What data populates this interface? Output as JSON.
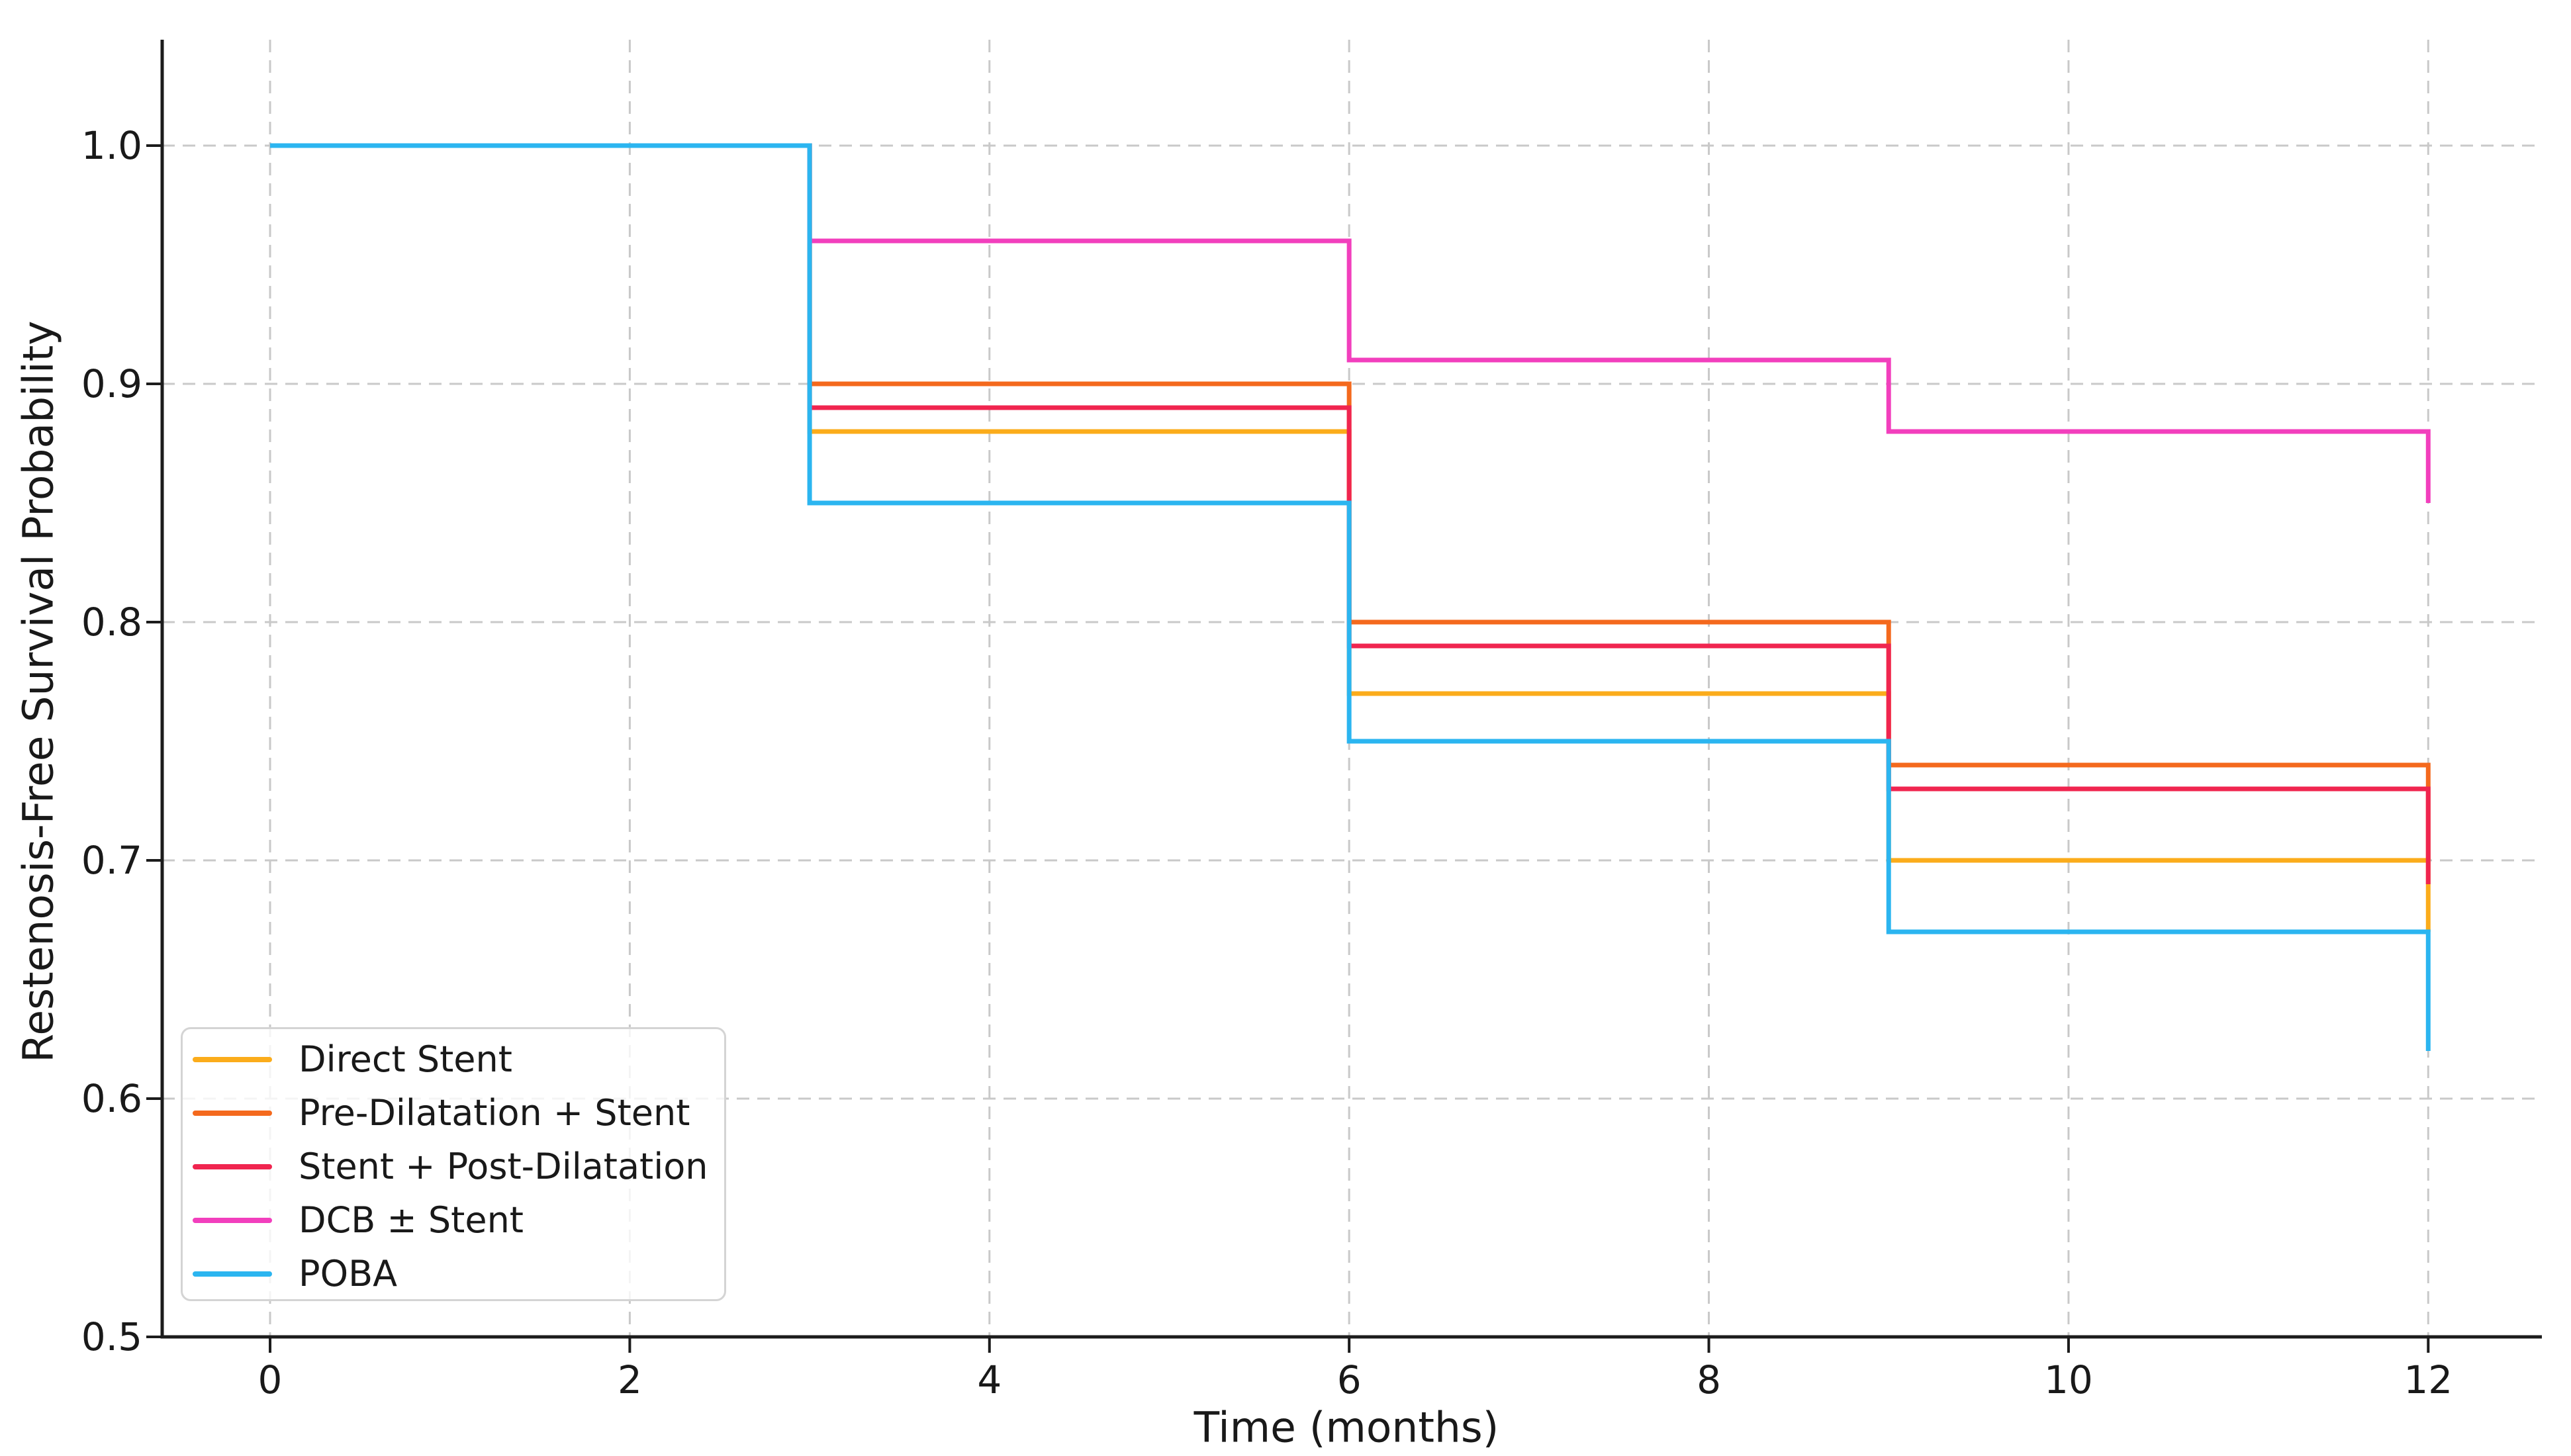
{
  "figure": {
    "background": "#ffffff"
  },
  "chart_data": {
    "type": "line",
    "subtype": "step-post-kaplan-meier",
    "title": "",
    "xlabel": "Time (months)",
    "ylabel": "Restenosis-Free Survival Probability",
    "xlim": [
      -0.6,
      12.632
    ],
    "ylim": [
      0.5,
      1.04444
    ],
    "x_ticks": [
      0,
      2,
      4,
      6,
      8,
      10,
      12
    ],
    "x_tick_labels": [
      "0",
      "2",
      "4",
      "6",
      "8",
      "10",
      "12"
    ],
    "y_ticks": [
      0.5,
      0.6,
      0.7,
      0.8,
      0.9,
      1.0
    ],
    "y_tick_labels": [
      "0.5",
      "0.6",
      "0.7",
      "0.8",
      "0.9",
      "1.0"
    ],
    "grid": true,
    "grid_style": "dashed",
    "legend_position": "lower left",
    "step_times": [
      0,
      3,
      6,
      9,
      12
    ],
    "series": [
      {
        "name": "Direct Stent",
        "color": "#FBAC1B",
        "survival": [
          1.0,
          0.88,
          0.77,
          0.7,
          0.67
        ]
      },
      {
        "name": "Pre-Dilatation + Stent",
        "color": "#F4691D",
        "survival": [
          1.0,
          0.9,
          0.8,
          0.74,
          0.7
        ]
      },
      {
        "name": "Stent + Post-Dilatation",
        "color": "#F0254F",
        "survival": [
          1.0,
          0.89,
          0.79,
          0.73,
          0.69
        ]
      },
      {
        "name": "DCB ± Stent",
        "color": "#F23FBD",
        "survival": [
          1.0,
          0.96,
          0.91,
          0.88,
          0.85
        ]
      },
      {
        "name": "POBA",
        "color": "#2BB5F0",
        "survival": [
          1.0,
          0.85,
          0.75,
          0.67,
          0.62
        ]
      }
    ],
    "styles": {
      "grid_color": "#c9c9c9",
      "spine_color": "#1c1c1c",
      "text_color": "#191919",
      "line_width": 7
    }
  }
}
